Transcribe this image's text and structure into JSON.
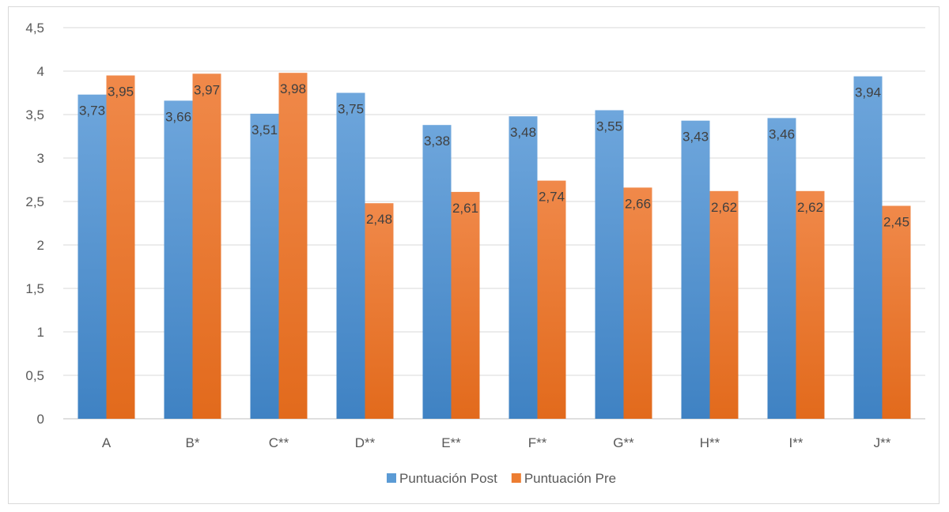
{
  "chart_data": {
    "type": "bar",
    "title": "",
    "xlabel": "",
    "ylabel": "",
    "categories": [
      "A",
      "B*",
      "C**",
      "D**",
      "E**",
      "F**",
      "G**",
      "H**",
      "I**",
      "J**"
    ],
    "series": [
      {
        "name": "Puntuación Post",
        "values": [
          3.73,
          3.66,
          3.51,
          3.75,
          3.38,
          3.48,
          3.55,
          3.43,
          3.46,
          3.94
        ],
        "color": "#5b9bd5"
      },
      {
        "name": "Puntuación Pre",
        "values": [
          3.95,
          3.97,
          3.98,
          2.48,
          2.61,
          2.74,
          2.66,
          2.62,
          2.62,
          2.45
        ],
        "color": "#ed7d31"
      }
    ],
    "ylim": [
      0,
      4.5
    ],
    "yticks": [
      "0",
      "0,5",
      "1",
      "1,5",
      "2",
      "2,5",
      "3",
      "3,5",
      "4",
      "4,5"
    ],
    "data_labels": {
      "post": [
        "3,73",
        "3,66",
        "3,51",
        "3,75",
        "3,38",
        "3,48",
        "3,55",
        "3,43",
        "3,46",
        "3,94"
      ],
      "pre": [
        "3,95",
        "3,97",
        "3,98",
        "2,48",
        "2,61",
        "2,74",
        "2,66",
        "2,62",
        "2,62",
        "2,45"
      ]
    },
    "grid": true,
    "legend": "bottom"
  }
}
